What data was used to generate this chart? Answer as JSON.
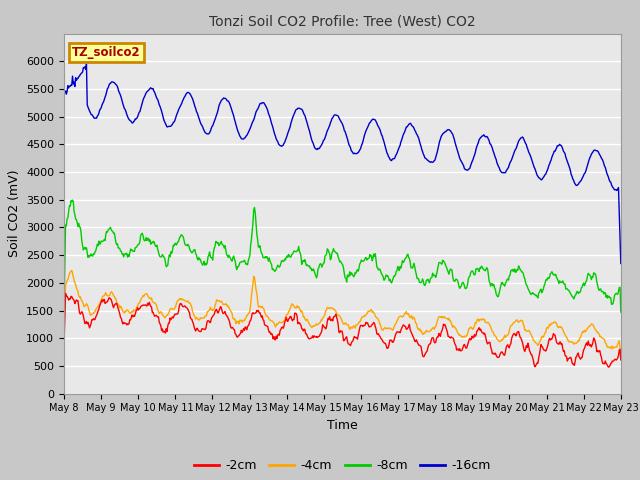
{
  "title": "Tonzi Soil CO2 Profile: Tree (West) CO2",
  "xlabel": "Time",
  "ylabel": "Soil CO2 (mV)",
  "legend_label": "TZ_soilco2",
  "fig_bg_color": "#c8c8c8",
  "plot_bg_color": "#e8e8e8",
  "series": {
    "-2cm": {
      "color": "#ff0000"
    },
    "-4cm": {
      "color": "#ffa500"
    },
    "-8cm": {
      "color": "#00cc00"
    },
    "-16cm": {
      "color": "#0000cc"
    }
  },
  "ylim": [
    0,
    6500
  ],
  "yticks": [
    0,
    500,
    1000,
    1500,
    2000,
    2500,
    3000,
    3500,
    4000,
    4500,
    5000,
    5500,
    6000
  ],
  "x_start_day": 8,
  "x_end_day": 23,
  "x_tick_days": [
    8,
    9,
    10,
    11,
    12,
    13,
    14,
    15,
    16,
    17,
    18,
    19,
    20,
    21,
    22,
    23
  ]
}
